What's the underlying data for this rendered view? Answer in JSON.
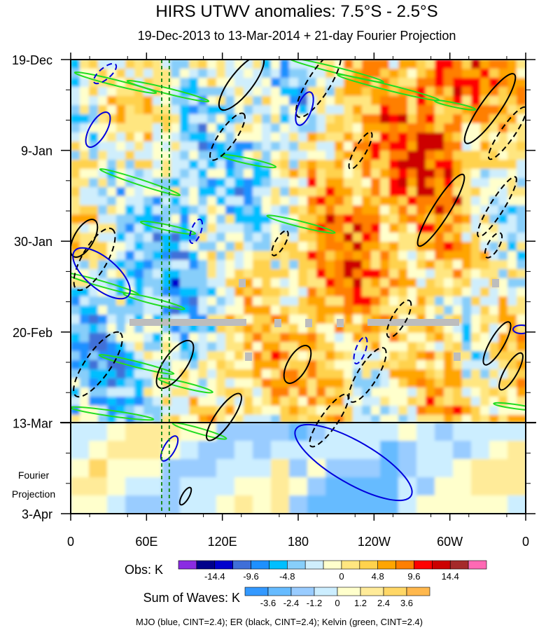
{
  "chart_data": {
    "type": "heatmap",
    "title": "HIRS UTWV anomalies: 7.5°S - 2.5°S",
    "subtitle": "19-Dec-2013 to 13-Mar-2014 + 21-day Fourier Projection",
    "xlabel": "",
    "ylabel": "",
    "x_ticks": [
      "0",
      "60E",
      "120E",
      "180",
      "120W",
      "60W",
      "0"
    ],
    "x_range_deg_east": [
      0,
      360
    ],
    "y_ticks": [
      "19-Dec",
      "9-Jan",
      "30-Jan",
      "20-Feb",
      "13-Mar",
      "3-Apr"
    ],
    "y_range_days": [
      0,
      105
    ],
    "observation_end_label": "13-Mar",
    "projection_label": [
      "Fourier",
      "Projection"
    ],
    "obs_colorbar": {
      "label": "Obs: K",
      "tick_labels": [
        "-14.4",
        "-9.6",
        "-4.8",
        "0",
        "4.8",
        "9.6",
        "14.4"
      ],
      "colors": [
        "#8a2be2",
        "#00008b",
        "#0000cd",
        "#3f6fd8",
        "#1e90ff",
        "#00bfff",
        "#87cefa",
        "#cfeefc",
        "#ffffcc",
        "#ffe680",
        "#ffd24d",
        "#ffa500",
        "#ff7f00",
        "#ff0000",
        "#cc0000",
        "#a52a2a",
        "#ff69b4"
      ]
    },
    "waves_colorbar": {
      "label": "Sum of Waves: K",
      "tick_labels": [
        "-3.6",
        "-2.4",
        "-1.2",
        "0",
        "1.2",
        "2.4",
        "3.6"
      ],
      "colors": [
        "#3399ff",
        "#66bbff",
        "#99ccff",
        "#cceeff",
        "#ffffcc",
        "#ffeb99",
        "#ffd766",
        "#ffb84d"
      ]
    },
    "contour_legend": "MJO (blue, CINT=2.4); ER (black, CINT=2.4); Kelvin (green, CINT=2.4)",
    "series": [
      {
        "name": "MJO",
        "color": "#0000dd",
        "cint": 2.4
      },
      {
        "name": "ER",
        "color": "#000000",
        "cint": 2.4
      },
      {
        "name": "Kelvin",
        "color": "#22dd22",
        "cint": 2.4
      }
    ],
    "reference_lines_deg_east": [
      72,
      78
    ]
  }
}
